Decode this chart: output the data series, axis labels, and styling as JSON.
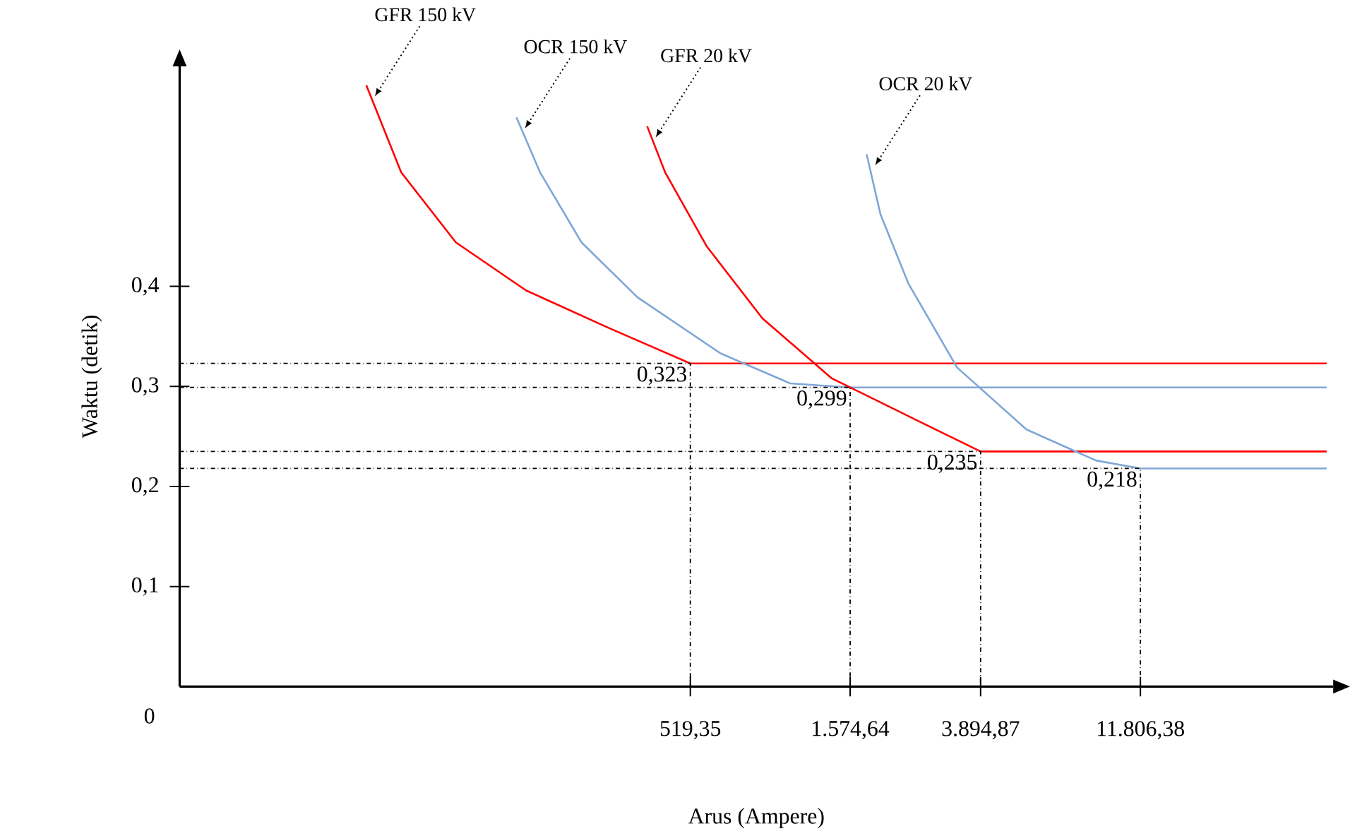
{
  "chart_data": {
    "type": "line",
    "xlabel": "Arus (Ampere)",
    "ylabel": "Waktu (detik)",
    "log": "x",
    "xlim": [
      15,
      45000
    ],
    "ylim": [
      0,
      0.62
    ],
    "xticks": [
      {
        "value": 519.35,
        "label": "519,35"
      },
      {
        "value": 1574.64,
        "label": "1.574,64"
      },
      {
        "value": 3894.87,
        "label": "3.894,87"
      },
      {
        "value": 11806.38,
        "label": "11.806,38"
      }
    ],
    "yticks": [
      {
        "value": 0.1,
        "label": "0,1"
      },
      {
        "value": 0.2,
        "label": "0,2"
      },
      {
        "value": 0.3,
        "label": "0,3"
      },
      {
        "value": 0.4,
        "label": "0,4"
      }
    ],
    "marker": "none",
    "line_style": "solid",
    "series": [
      {
        "name": "GFR 150 kV",
        "color": "#ff0000",
        "x": [
          54.8,
          69.8,
          102,
          166,
          297,
          519.35,
          43000
        ],
        "values": [
          0.601,
          0.514,
          0.444,
          0.396,
          0.358,
          0.323,
          0.323
        ]
      },
      {
        "name": "OCR 150 kV",
        "color": "#7fa6d6",
        "x": [
          155.4,
          183,
          244,
          360,
          641,
          1039,
          1574.64,
          43000
        ],
        "values": [
          0.569,
          0.514,
          0.444,
          0.389,
          0.333,
          0.303,
          0.299,
          0.299
        ]
      },
      {
        "name": "GFR 20 kV",
        "color": "#ff0000",
        "x": [
          385,
          436,
          582,
          857,
          1387,
          2473,
          3894.87,
          43000
        ],
        "values": [
          0.56,
          0.514,
          0.44,
          0.368,
          0.308,
          0.267,
          0.235,
          0.235
        ]
      },
      {
        "name": "OCR 20 kV",
        "color": "#7fa6d6",
        "x": [
          1766,
          1944,
          2358,
          3306,
          5353,
          8670,
          11806.38,
          43000
        ],
        "values": [
          0.532,
          0.472,
          0.403,
          0.319,
          0.257,
          0.226,
          0.218,
          0.218
        ]
      },
      {
        "color": "#000000",
        "line_style": "dashed",
        "x": [
          15,
          519.35,
          519.35
        ],
        "values": [
          0.323,
          0.323,
          0
        ]
      },
      {
        "color": "#000000",
        "line_style": "dashed",
        "x": [
          15,
          1574.64,
          1574.64
        ],
        "values": [
          0.299,
          0.299,
          0
        ]
      },
      {
        "color": "#000000",
        "line_style": "dashed",
        "x": [
          15,
          3894.87,
          3894.87
        ],
        "values": [
          0.235,
          0.235,
          0
        ]
      },
      {
        "color": "#000000",
        "line_style": "dashed",
        "x": [
          15,
          11806.38,
          11806.38
        ],
        "values": [
          0.218,
          0.218,
          0
        ]
      }
    ],
    "annotations": [
      "0",
      {
        "text": "0,323",
        "x": 519.35,
        "y": 0.323
      },
      {
        "text": "0,299",
        "x": 1574.64,
        "y": 0.299
      },
      {
        "text": "0,235",
        "x": 3894.87,
        "y": 0.235
      },
      {
        "text": "0,218",
        "x": 11806.38,
        "y": 0.218
      }
    ]
  }
}
